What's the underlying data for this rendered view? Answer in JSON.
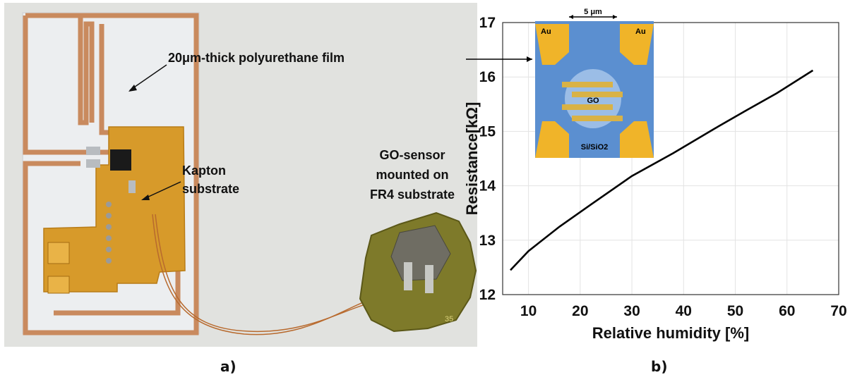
{
  "photo": {
    "annotations": {
      "film": "20μm-thick polyurethane film",
      "kapton_line1": "Kapton",
      "kapton_line2": "substrate",
      "sensor_line1": "GO-sensor",
      "sensor_line2": "mounted on",
      "sensor_line3": "FR4 substrate"
    },
    "board_number": "35"
  },
  "panel_labels": {
    "left": "a)",
    "right": "b)"
  },
  "inset": {
    "scale_label": "5 μm",
    "left_pad": "Au",
    "right_pad": "Au",
    "material": "GO",
    "substrate": "Si/SiO2"
  },
  "colors": {
    "background_photo": "#e2e3e0",
    "copper": "#c98a5e",
    "kapton": "#d79a2a",
    "fr4": "#7e7a2a",
    "line": "#000000",
    "inset_blue": "#5b8fd0",
    "inset_gold": "#f0b429"
  },
  "chart_data": {
    "type": "line",
    "title": "",
    "xlabel": "Relative humidity [%]",
    "ylabel": "Resistance[kΩ]",
    "xlim": [
      5,
      70
    ],
    "ylim": [
      12,
      17
    ],
    "xticks": [
      10,
      20,
      30,
      40,
      50,
      60,
      70
    ],
    "yticks": [
      12,
      13,
      14,
      15,
      16,
      17
    ],
    "grid": true,
    "series": [
      {
        "x": [
          6.5,
          10,
          16,
          22,
          30,
          38,
          46,
          52,
          58,
          65
        ],
        "y": [
          12.45,
          12.8,
          13.25,
          13.65,
          14.18,
          14.6,
          15.05,
          15.38,
          15.7,
          16.12
        ]
      }
    ]
  }
}
